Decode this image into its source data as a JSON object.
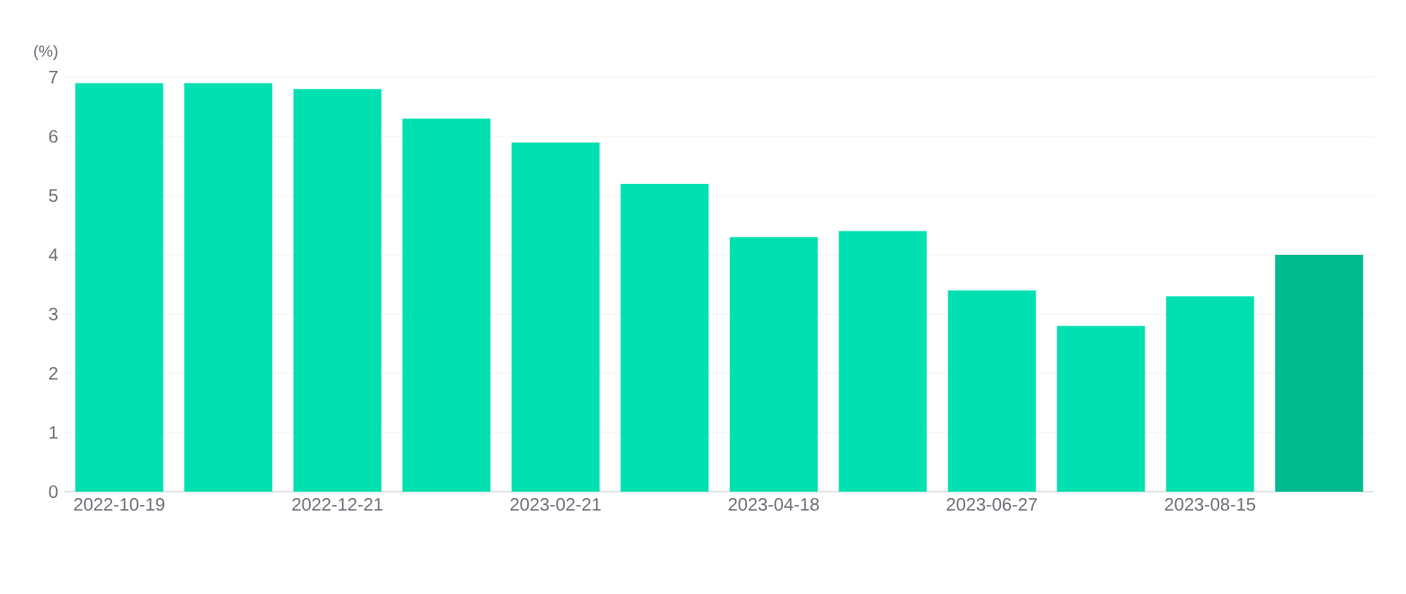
{
  "chart_data": {
    "type": "bar",
    "ylabel": "(%)",
    "categories": [
      "2022-10-19",
      null,
      "2022-12-21",
      null,
      "2023-02-21",
      null,
      "2023-04-18",
      null,
      "2023-06-27",
      null,
      "2023-08-15",
      null
    ],
    "values": [
      6.9,
      6.9,
      6.8,
      6.3,
      5.9,
      5.2,
      4.3,
      4.4,
      3.4,
      2.8,
      3.3,
      4.0
    ],
    "colors": [
      "#00e0b0",
      "#00e0b0",
      "#00e0b0",
      "#00e0b0",
      "#00e0b0",
      "#00e0b0",
      "#00e0b0",
      "#00e0b0",
      "#00e0b0",
      "#00e0b0",
      "#00e0b0",
      "#00b98f"
    ],
    "ylim": [
      0,
      7
    ],
    "yticks": [
      0,
      1,
      2,
      3,
      4,
      5,
      6,
      7
    ],
    "grid": "y"
  }
}
